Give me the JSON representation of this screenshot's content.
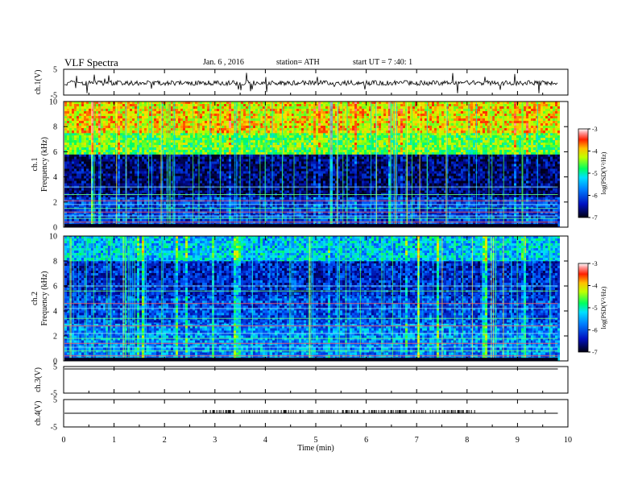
{
  "header": {
    "title": "VLF  Spectra",
    "date": "Jan. 6  , 2016",
    "station": "station= ATH",
    "start": "start  UT  =   7 :40: 1"
  },
  "colors": {
    "frame": "#000000",
    "spectro_dark": "#000020",
    "spectro_blue": "#1030d0",
    "spectro_cyan": "#00c8ff",
    "spectro_green": "#40ff60",
    "spectro_yellow": "#ffff40",
    "spectro_red": "#ff2020"
  },
  "chart_data": [
    {
      "type": "line",
      "name": "ch1-waveform",
      "ylabel": "ch.1(V)",
      "ylim": [
        -5,
        5
      ],
      "yticks": [
        "5",
        "-5"
      ],
      "xlim": [
        0,
        10
      ]
    },
    {
      "type": "heatmap",
      "name": "ch1-spectrogram",
      "ylabel_channel": "ch.1",
      "ylabel": "Frequency  (kHz)",
      "ylim": [
        0,
        10
      ],
      "yticks": [
        "0",
        "2",
        "4",
        "6",
        "8",
        "10"
      ],
      "xlim": [
        0,
        10
      ],
      "data_end_min": 9.8,
      "bands": [
        {
          "from_khz": 0,
          "to_khz": 2.4,
          "level": 0.22
        },
        {
          "from_khz": 2.4,
          "to_khz": 5.8,
          "level": 0.08
        },
        {
          "from_khz": 5.8,
          "to_khz": 7.5,
          "level": 0.6
        },
        {
          "from_khz": 7.5,
          "to_khz": 10,
          "level": 0.74
        }
      ],
      "colorbar": {
        "label": "log(PSD(V²/Hz)",
        "min": -7,
        "max": -3,
        "ticks": [
          "-3",
          "-4",
          "-5",
          "-6",
          "-7"
        ]
      }
    },
    {
      "type": "heatmap",
      "name": "ch2-spectrogram",
      "ylabel_channel": "ch.2",
      "ylabel": "Frequency  (kHz)",
      "ylim": [
        0,
        10
      ],
      "yticks": [
        "0",
        "2",
        "4",
        "6",
        "8",
        "10"
      ],
      "xlim": [
        0,
        10
      ],
      "data_end_min": 9.8,
      "bands": [
        {
          "from_khz": 0,
          "to_khz": 3.0,
          "level": 0.32
        },
        {
          "from_khz": 3.0,
          "to_khz": 5.2,
          "level": 0.24
        },
        {
          "from_khz": 5.2,
          "to_khz": 8.0,
          "level": 0.18
        },
        {
          "from_khz": 8.0,
          "to_khz": 10,
          "level": 0.4
        }
      ],
      "colorbar": {
        "label": "log(PSD(V²/Hz)",
        "min": -7,
        "max": -3,
        "ticks": [
          "-3",
          "-4",
          "-5",
          "-6",
          "-7"
        ]
      }
    },
    {
      "type": "line",
      "name": "ch3-waveform",
      "ylabel": "ch.3(V)",
      "ylim": [
        -5,
        5
      ],
      "yticks": [
        "5",
        "-5"
      ],
      "xlim": [
        0,
        10
      ]
    },
    {
      "type": "line",
      "name": "ch4-waveform",
      "ylabel": "ch.4(V)",
      "ylim": [
        -5,
        5
      ],
      "yticks": [
        "5",
        "-5"
      ],
      "xlim": [
        0,
        10
      ],
      "pulse_window_min": [
        2.75,
        8.2
      ]
    }
  ],
  "xaxis": {
    "label": "Time  (min)",
    "ticks": [
      "0",
      "1",
      "2",
      "3",
      "4",
      "5",
      "6",
      "7",
      "8",
      "9",
      "10"
    ]
  }
}
